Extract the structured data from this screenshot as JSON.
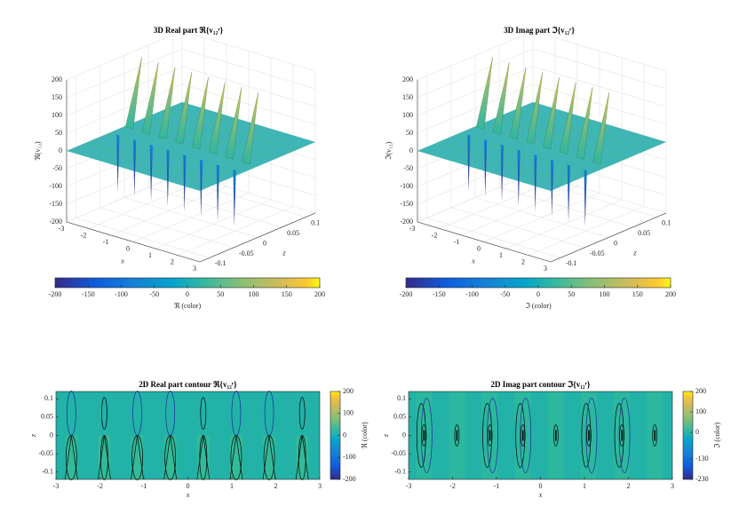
{
  "chart_data": [
    {
      "type": "surface3d",
      "title": "3D Real part ℜ{v₁₂ʳ}",
      "xlabel": "x",
      "ylabel": "z",
      "zlabel": "ℜ(v₁₂)",
      "xlim": [
        -3,
        3
      ],
      "xticks": [
        -3,
        -2,
        -1,
        0,
        1,
        2,
        3
      ],
      "ylim": [
        -0.12,
        0.12
      ],
      "yticks": [
        -0.1,
        -0.05,
        0,
        0.05,
        0.1
      ],
      "zlim": [
        -200,
        200
      ],
      "zticks": [
        -200,
        -150,
        -100,
        -50,
        0,
        50,
        100,
        150,
        200
      ],
      "peaks_x": [
        -2.65,
        -1.9,
        -1.15,
        -0.4,
        0.35,
        1.1,
        1.85,
        2.6
      ],
      "clim": [
        -200,
        200
      ],
      "cticks": [
        -200,
        -150,
        -100,
        -50,
        0,
        50,
        100,
        150,
        200
      ],
      "clabel": "ℜ (color)",
      "grid": true
    },
    {
      "type": "surface3d",
      "title": "3D Imag part ℑ{v₁₂ʳ}",
      "xlabel": "x",
      "ylabel": "z",
      "zlabel": "ℑ(v₁₂)",
      "xlim": [
        -3,
        3
      ],
      "xticks": [
        -3,
        -2,
        -1,
        0,
        1,
        2,
        3
      ],
      "ylim": [
        -0.12,
        0.12
      ],
      "yticks": [
        -0.1,
        -0.05,
        0,
        0.05,
        0.1
      ],
      "zlim": [
        -200,
        200
      ],
      "zticks": [
        -200,
        -150,
        -100,
        -50,
        0,
        50,
        100,
        150,
        200
      ],
      "peaks_x": [
        -2.65,
        -1.9,
        -1.15,
        -0.4,
        0.35,
        1.1,
        1.85,
        2.6
      ],
      "clim": [
        -200,
        200
      ],
      "cticks": [
        -200,
        -150,
        -100,
        -50,
        0,
        50,
        100,
        150,
        200
      ],
      "clabel": "ℑ (color)",
      "grid": true
    },
    {
      "type": "contour",
      "title": "2D Real part contour ℜ{v₁₂ʳ}",
      "xlabel": "x",
      "ylabel": "z",
      "xlim": [
        -3,
        3
      ],
      "xticks": [
        -3,
        -2,
        -1,
        0,
        1,
        2,
        3
      ],
      "ylim": [
        -0.12,
        0.12
      ],
      "yticks": [
        -0.1,
        -0.05,
        0,
        0.05,
        0.1
      ],
      "peaks_x": [
        -2.65,
        -1.9,
        -1.15,
        -0.4,
        0.35,
        1.1,
        1.85,
        2.6
      ],
      "clim": [
        -200,
        200
      ],
      "cticks": [
        -200,
        -100,
        0,
        100,
        200
      ],
      "clabel": "ℜ (color)"
    },
    {
      "type": "contour",
      "title": "2D Imag part contour ℑ{v₁₂ʳ}",
      "xlabel": "x",
      "ylabel": "z",
      "xlim": [
        -3,
        3
      ],
      "xticks": [
        -3,
        -2,
        -1,
        0,
        1,
        2,
        3
      ],
      "ylim": [
        -0.12,
        0.12
      ],
      "yticks": [
        -0.1,
        -0.05,
        0,
        0.05,
        0.1
      ],
      "peaks_x": [
        -2.65,
        -1.9,
        -1.15,
        -0.4,
        0.35,
        1.1,
        1.85,
        2.6
      ],
      "clim": [
        -230,
        200
      ],
      "cticks": [
        -230,
        -130,
        0,
        100,
        200
      ],
      "clabel": "ℑ (color)"
    }
  ]
}
